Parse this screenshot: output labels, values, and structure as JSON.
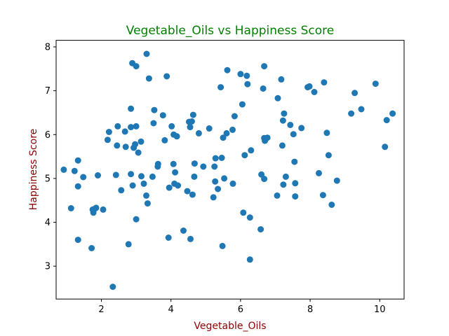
{
  "chart_data": {
    "type": "scatter",
    "title": "Vegetable_Oils vs Happiness Score",
    "xlabel": "Vegetable_Oils",
    "ylabel": "Happiness Score",
    "xlim": [
      0.7,
      10.7
    ],
    "ylim": [
      2.25,
      8.15
    ],
    "xticks": [
      2,
      4,
      6,
      8,
      10
    ],
    "yticks": [
      3,
      4,
      5,
      6,
      7,
      8
    ],
    "grid": false,
    "colors": {
      "points": "#1f77b4",
      "title": "#008000",
      "axis_labels": "#8b0000"
    },
    "points": [
      {
        "x": 0.92,
        "y": 5.2
      },
      {
        "x": 1.13,
        "y": 4.32
      },
      {
        "x": 1.23,
        "y": 5.17
      },
      {
        "x": 1.33,
        "y": 5.41
      },
      {
        "x": 1.33,
        "y": 4.82
      },
      {
        "x": 1.33,
        "y": 3.6
      },
      {
        "x": 1.48,
        "y": 5.03
      },
      {
        "x": 1.72,
        "y": 3.41
      },
      {
        "x": 1.75,
        "y": 4.29
      },
      {
        "x": 1.77,
        "y": 4.22
      },
      {
        "x": 1.81,
        "y": 4.31
      },
      {
        "x": 1.85,
        "y": 4.33
      },
      {
        "x": 1.9,
        "y": 5.07
      },
      {
        "x": 2.05,
        "y": 4.29
      },
      {
        "x": 2.18,
        "y": 5.88
      },
      {
        "x": 2.22,
        "y": 6.06
      },
      {
        "x": 2.33,
        "y": 2.53
      },
      {
        "x": 2.42,
        "y": 5.08
      },
      {
        "x": 2.45,
        "y": 5.75
      },
      {
        "x": 2.47,
        "y": 6.19
      },
      {
        "x": 2.57,
        "y": 4.73
      },
      {
        "x": 2.68,
        "y": 6.07
      },
      {
        "x": 2.7,
        "y": 5.72
      },
      {
        "x": 2.78,
        "y": 3.5
      },
      {
        "x": 2.85,
        "y": 6.17
      },
      {
        "x": 2.85,
        "y": 6.59
      },
      {
        "x": 2.85,
        "y": 5.1
      },
      {
        "x": 2.89,
        "y": 7.63
      },
      {
        "x": 2.9,
        "y": 4.84
      },
      {
        "x": 2.93,
        "y": 5.7
      },
      {
        "x": 2.97,
        "y": 5.78
      },
      {
        "x": 3.0,
        "y": 6.19
      },
      {
        "x": 3.0,
        "y": 7.56
      },
      {
        "x": 3.0,
        "y": 4.07
      },
      {
        "x": 3.06,
        "y": 5.59
      },
      {
        "x": 3.14,
        "y": 5.84
      },
      {
        "x": 3.15,
        "y": 5.05
      },
      {
        "x": 3.22,
        "y": 4.88
      },
      {
        "x": 3.29,
        "y": 4.61
      },
      {
        "x": 3.3,
        "y": 7.84
      },
      {
        "x": 3.33,
        "y": 4.43
      },
      {
        "x": 3.37,
        "y": 7.28
      },
      {
        "x": 3.47,
        "y": 5.04
      },
      {
        "x": 3.5,
        "y": 6.26
      },
      {
        "x": 3.52,
        "y": 6.56
      },
      {
        "x": 3.62,
        "y": 5.27
      },
      {
        "x": 3.63,
        "y": 5.33
      },
      {
        "x": 3.77,
        "y": 6.44
      },
      {
        "x": 3.82,
        "y": 5.87
      },
      {
        "x": 3.88,
        "y": 7.33
      },
      {
        "x": 3.93,
        "y": 3.65
      },
      {
        "x": 3.95,
        "y": 4.79
      },
      {
        "x": 4.02,
        "y": 6.19
      },
      {
        "x": 4.07,
        "y": 5.33
      },
      {
        "x": 4.08,
        "y": 6.0
      },
      {
        "x": 4.1,
        "y": 4.88
      },
      {
        "x": 4.12,
        "y": 5.14
      },
      {
        "x": 4.17,
        "y": 5.96
      },
      {
        "x": 4.2,
        "y": 4.84
      },
      {
        "x": 4.36,
        "y": 3.81
      },
      {
        "x": 4.47,
        "y": 4.71
      },
      {
        "x": 4.52,
        "y": 6.29
      },
      {
        "x": 4.55,
        "y": 6.17
      },
      {
        "x": 4.56,
        "y": 3.62
      },
      {
        "x": 4.6,
        "y": 6.3
      },
      {
        "x": 4.62,
        "y": 4.63
      },
      {
        "x": 4.64,
        "y": 6.45
      },
      {
        "x": 4.67,
        "y": 5.04
      },
      {
        "x": 4.68,
        "y": 5.34
      },
      {
        "x": 4.8,
        "y": 6.03
      },
      {
        "x": 4.93,
        "y": 5.27
      },
      {
        "x": 5.1,
        "y": 6.14
      },
      {
        "x": 5.22,
        "y": 4.57
      },
      {
        "x": 5.25,
        "y": 5.27
      },
      {
        "x": 5.27,
        "y": 4.93
      },
      {
        "x": 5.28,
        "y": 5.46
      },
      {
        "x": 5.35,
        "y": 4.76
      },
      {
        "x": 5.43,
        "y": 7.08
      },
      {
        "x": 5.46,
        "y": 5.47
      },
      {
        "x": 5.48,
        "y": 3.46
      },
      {
        "x": 5.5,
        "y": 5.93
      },
      {
        "x": 5.53,
        "y": 5.0
      },
      {
        "x": 5.6,
        "y": 6.03
      },
      {
        "x": 5.62,
        "y": 7.47
      },
      {
        "x": 5.77,
        "y": 6.11
      },
      {
        "x": 5.78,
        "y": 4.88
      },
      {
        "x": 5.83,
        "y": 6.42
      },
      {
        "x": 6.0,
        "y": 7.38
      },
      {
        "x": 6.05,
        "y": 6.69
      },
      {
        "x": 6.08,
        "y": 4.22
      },
      {
        "x": 6.12,
        "y": 5.53
      },
      {
        "x": 6.18,
        "y": 7.34
      },
      {
        "x": 6.2,
        "y": 7.15
      },
      {
        "x": 6.27,
        "y": 4.11
      },
      {
        "x": 6.3,
        "y": 5.64
      },
      {
        "x": 6.27,
        "y": 3.15
      },
      {
        "x": 6.58,
        "y": 3.84
      },
      {
        "x": 6.6,
        "y": 5.09
      },
      {
        "x": 6.65,
        "y": 7.05
      },
      {
        "x": 6.68,
        "y": 4.99
      },
      {
        "x": 6.68,
        "y": 5.92
      },
      {
        "x": 6.68,
        "y": 7.56
      },
      {
        "x": 6.7,
        "y": 5.86
      },
      {
        "x": 6.77,
        "y": 5.93
      },
      {
        "x": 7.05,
        "y": 4.61
      },
      {
        "x": 7.07,
        "y": 6.83
      },
      {
        "x": 7.17,
        "y": 7.26
      },
      {
        "x": 7.2,
        "y": 5.75
      },
      {
        "x": 7.22,
        "y": 6.32
      },
      {
        "x": 7.23,
        "y": 4.86
      },
      {
        "x": 7.25,
        "y": 6.48
      },
      {
        "x": 7.3,
        "y": 5.04
      },
      {
        "x": 7.43,
        "y": 6.22
      },
      {
        "x": 7.52,
        "y": 6.01
      },
      {
        "x": 7.55,
        "y": 5.38
      },
      {
        "x": 7.57,
        "y": 4.89
      },
      {
        "x": 7.57,
        "y": 4.59
      },
      {
        "x": 7.75,
        "y": 6.15
      },
      {
        "x": 7.93,
        "y": 7.08
      },
      {
        "x": 7.98,
        "y": 7.1
      },
      {
        "x": 8.12,
        "y": 6.97
      },
      {
        "x": 8.25,
        "y": 5.12
      },
      {
        "x": 8.37,
        "y": 4.62
      },
      {
        "x": 8.4,
        "y": 7.19
      },
      {
        "x": 8.48,
        "y": 6.04
      },
      {
        "x": 8.53,
        "y": 5.53
      },
      {
        "x": 8.62,
        "y": 4.4
      },
      {
        "x": 8.77,
        "y": 4.95
      },
      {
        "x": 9.18,
        "y": 6.48
      },
      {
        "x": 9.28,
        "y": 6.95
      },
      {
        "x": 9.47,
        "y": 6.58
      },
      {
        "x": 9.88,
        "y": 7.16
      },
      {
        "x": 10.15,
        "y": 5.72
      },
      {
        "x": 10.2,
        "y": 6.33
      },
      {
        "x": 10.37,
        "y": 6.48
      }
    ]
  }
}
